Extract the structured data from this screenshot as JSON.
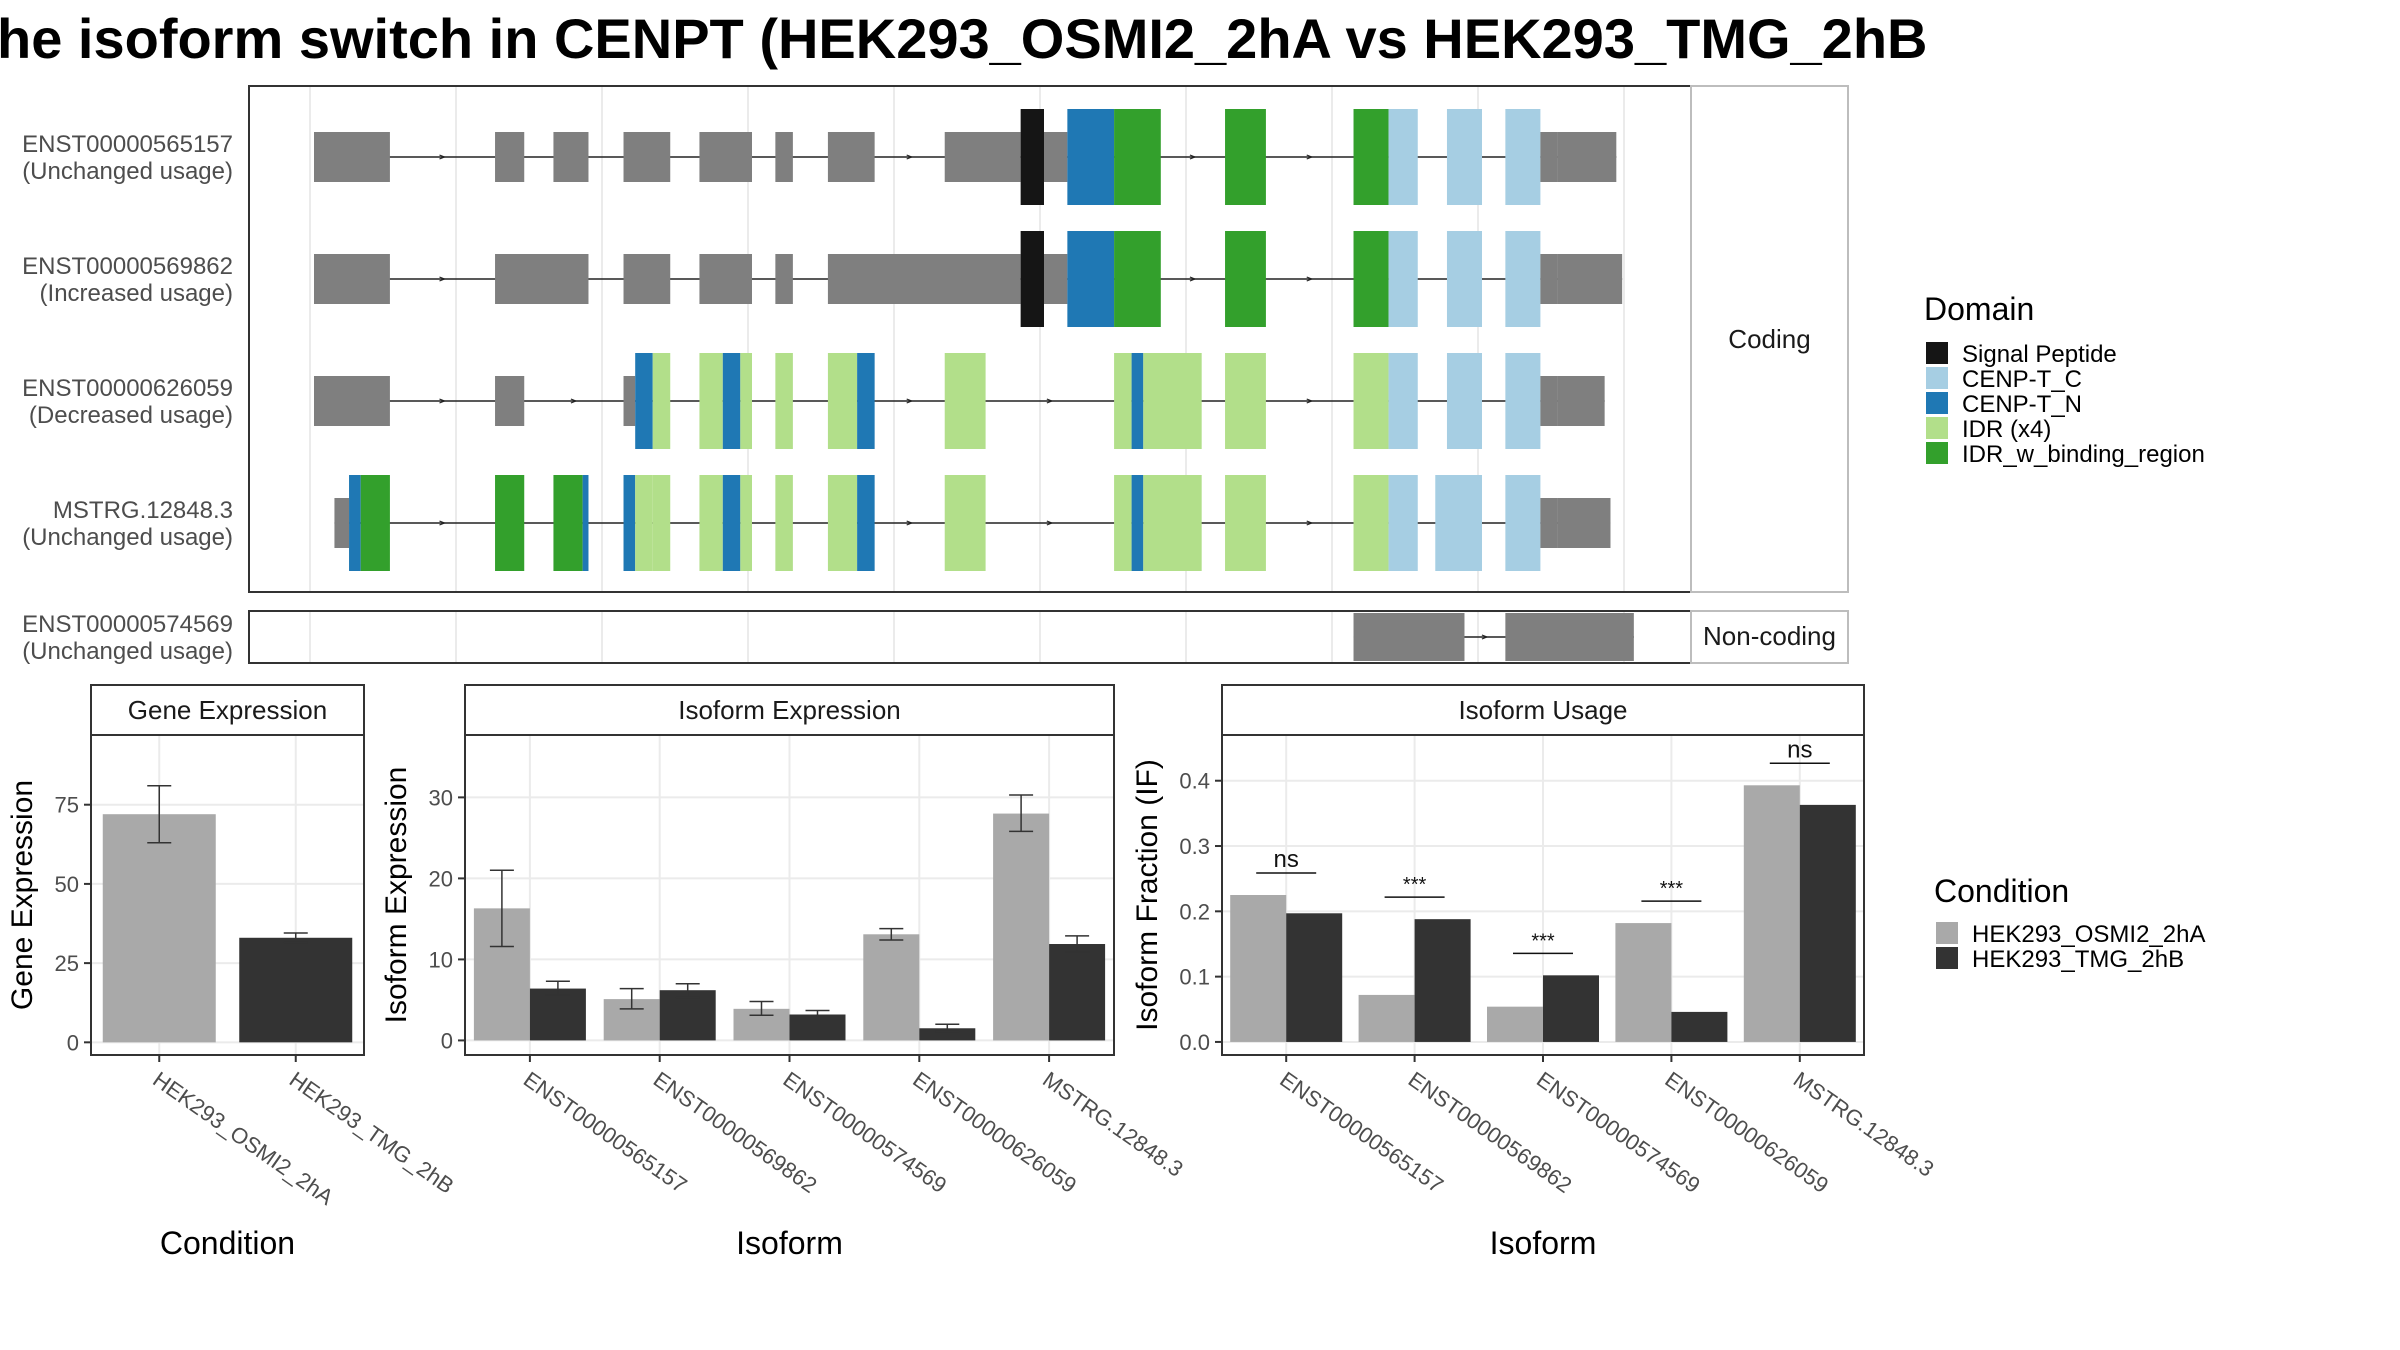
{
  "title": "he isoform switch in CENPT (HEK293_OSMI2_2hA vs HEK293_TMG_2hB",
  "colors": {
    "signal_peptide": "#151515",
    "cenp_t_c": "#a6cee3",
    "cenp_t_n": "#1f78b4",
    "idr": "#b2df8a",
    "idr_binding": "#33a02c",
    "no_domain": "#7f7f7f",
    "cond_a": "#a9a9a9",
    "cond_b": "#333333",
    "panel_border": "#333333",
    "strip_border": "#bdbdbd",
    "grid": "#ebebeb",
    "axis_text": "#4d4d4d"
  },
  "chart_data": [
    {
      "type": "table",
      "name": "isoform-structure",
      "facets": [
        "Coding",
        "Non-coding"
      ],
      "transcripts": [
        {
          "id": "ENST00000565157",
          "label": "(Unchanged usage)",
          "facet": "Coding",
          "exons": [
            [
              0,
              13
            ],
            [
              31,
              36
            ],
            [
              41,
              47
            ],
            [
              53,
              61
            ],
            [
              66,
              75
            ],
            [
              79,
              82
            ],
            [
              88,
              96
            ],
            [
              108,
              121
            ],
            [
              121,
              125
            ],
            [
              125,
              129
            ],
            [
              129,
              137
            ],
            [
              137,
              145
            ],
            [
              156,
              163
            ],
            [
              178,
              184
            ],
            [
              184,
              189
            ],
            [
              194,
              200
            ],
            [
              204,
              210
            ],
            [
              210,
              213
            ],
            [
              213,
              223
            ]
          ],
          "domains": [
            "none",
            "none",
            "none",
            "none",
            "none",
            "none",
            "none",
            "none",
            "Signal Peptide",
            "none",
            "CENP-T_N",
            "IDR_w_binding_region",
            "IDR_w_binding_region",
            "IDR_w_binding_region",
            "CENP-T_C",
            "CENP-T_C",
            "CENP-T_C",
            "none",
            "none"
          ]
        },
        {
          "id": "ENST00000569862",
          "label": "(Increased usage)",
          "facet": "Coding",
          "exons": [
            [
              0,
              13
            ],
            [
              31,
              47
            ],
            [
              53,
              61
            ],
            [
              66,
              75
            ],
            [
              79,
              82
            ],
            [
              88,
              121
            ],
            [
              121,
              125
            ],
            [
              125,
              129
            ],
            [
              129,
              137
            ],
            [
              137,
              145
            ],
            [
              156,
              163
            ],
            [
              178,
              184
            ],
            [
              184,
              189
            ],
            [
              194,
              200
            ],
            [
              204,
              210
            ],
            [
              210,
              213
            ],
            [
              213,
              224
            ]
          ],
          "domains": [
            "none",
            "none",
            "none",
            "none",
            "none",
            "none",
            "Signal Peptide",
            "none",
            "CENP-T_N",
            "IDR_w_binding_region",
            "IDR_w_binding_region",
            "IDR_w_binding_region",
            "CENP-T_C",
            "CENP-T_C",
            "CENP-T_C",
            "none",
            "none"
          ]
        },
        {
          "id": "ENST00000626059",
          "label": "(Decreased usage)",
          "facet": "Coding",
          "exons": [
            [
              0,
              13
            ],
            [
              31,
              36
            ],
            [
              53,
              55
            ],
            [
              55,
              58
            ],
            [
              58,
              61
            ],
            [
              66,
              70
            ],
            [
              70,
              73
            ],
            [
              73,
              75
            ],
            [
              79,
              82
            ],
            [
              88,
              93
            ],
            [
              93,
              96
            ],
            [
              108,
              115
            ],
            [
              137,
              140
            ],
            [
              140,
              142
            ],
            [
              142,
              152
            ],
            [
              156,
              163
            ],
            [
              178,
              184
            ],
            [
              184,
              189
            ],
            [
              194,
              200
            ],
            [
              204,
              210
            ],
            [
              210,
              213
            ],
            [
              213,
              221
            ]
          ],
          "domains": [
            "none",
            "none",
            "none",
            "CENP-T_N",
            "IDR",
            "IDR",
            "CENP-T_N",
            "IDR",
            "IDR",
            "IDR",
            "CENP-T_N",
            "IDR",
            "IDR",
            "CENP-T_N",
            "IDR",
            "IDR",
            "IDR",
            "CENP-T_C",
            "CENP-T_C",
            "CENP-T_C",
            "none",
            "none"
          ]
        },
        {
          "id": "MSTRG.12848.3",
          "label": "(Unchanged usage)",
          "facet": "Coding",
          "exons": [
            [
              3.5,
              6
            ],
            [
              6,
              8
            ],
            [
              8,
              13
            ],
            [
              31,
              36
            ],
            [
              41,
              46
            ],
            [
              46,
              47
            ],
            [
              53,
              55
            ],
            [
              55,
              58
            ],
            [
              58,
              61
            ],
            [
              66,
              70
            ],
            [
              70,
              73
            ],
            [
              73,
              75
            ],
            [
              79,
              82
            ],
            [
              88,
              93
            ],
            [
              93,
              96
            ],
            [
              108,
              115
            ],
            [
              137,
              140
            ],
            [
              140,
              142
            ],
            [
              142,
              152
            ],
            [
              156,
              163
            ],
            [
              178,
              184
            ],
            [
              184,
              189
            ],
            [
              192,
              200
            ],
            [
              204,
              210
            ],
            [
              210,
              213
            ],
            [
              213,
              222
            ]
          ],
          "domains": [
            "none",
            "CENP-T_N",
            "IDR_w_binding_region",
            "IDR_w_binding_region",
            "IDR_w_binding_region",
            "CENP-T_N",
            "CENP-T_N",
            "IDR",
            "IDR",
            "IDR",
            "CENP-T_N",
            "IDR",
            "IDR",
            "IDR",
            "CENP-T_N",
            "IDR",
            "IDR",
            "CENP-T_N",
            "IDR",
            "IDR",
            "IDR",
            "CENP-T_C",
            "CENP-T_C",
            "CENP-T_C",
            "none",
            "none"
          ]
        },
        {
          "id": "ENST00000574569",
          "label": "(Unchanged usage)",
          "facet": "Non-coding",
          "exons": [
            [
              178,
              197
            ],
            [
              204,
              226
            ]
          ],
          "domains": [
            "none",
            "none"
          ]
        }
      ],
      "legend": {
        "title": "Domain",
        "items": [
          "Signal Peptide",
          "CENP-T_C",
          "CENP-T_N",
          "IDR (x4)",
          "IDR_w_binding_region"
        ]
      }
    },
    {
      "type": "bar",
      "name": "gene-expression",
      "title": "Gene Expression",
      "xlabel": "Condition",
      "ylabel": "Gene Expression",
      "categories": [
        "HEK293_OSMI2_2hA",
        "HEK293_TMG_2hB"
      ],
      "values": [
        72,
        33
      ],
      "errors": [
        [
          63,
          81
        ],
        [
          31.5,
          34.5
        ]
      ],
      "ylim": [
        -4,
        97
      ],
      "yticks": [
        0,
        25,
        50,
        75
      ]
    },
    {
      "type": "bar",
      "name": "isoform-expression",
      "title": "Isoform Expression",
      "xlabel": "Isoform",
      "ylabel": "Isoform Expression",
      "categories": [
        "ENST00000565157",
        "ENST00000569862",
        "ENST00000574569",
        "ENST00000626059",
        "MSTRG.12848.3"
      ],
      "series": [
        {
          "name": "HEK293_OSMI2_2hA",
          "values": [
            16.3,
            5.1,
            3.9,
            13.1,
            28.0
          ],
          "errors": [
            [
              11.6,
              21.0
            ],
            [
              3.9,
              6.4
            ],
            [
              3.1,
              4.8
            ],
            [
              12.4,
              13.8
            ],
            [
              25.8,
              30.3
            ]
          ]
        },
        {
          "name": "HEK293_TMG_2hB",
          "values": [
            6.4,
            6.2,
            3.2,
            1.5,
            11.9
          ],
          "errors": [
            [
              5.6,
              7.3
            ],
            [
              5.3,
              7.0
            ],
            [
              2.8,
              3.7
            ],
            [
              1.1,
              2.0
            ],
            [
              10.9,
              12.9
            ]
          ]
        }
      ],
      "ylim": [
        -1.8,
        37.7
      ],
      "yticks": [
        0,
        10,
        20,
        30
      ]
    },
    {
      "type": "bar",
      "name": "isoform-usage",
      "title": "Isoform Usage",
      "xlabel": "Isoform",
      "ylabel": "Isoform Fraction (IF)",
      "categories": [
        "ENST00000565157",
        "ENST00000569862",
        "ENST00000574569",
        "ENST00000626059",
        "MSTRG.12848.3"
      ],
      "series": [
        {
          "name": "HEK293_OSMI2_2hA",
          "values": [
            0.225,
            0.072,
            0.054,
            0.182,
            0.393
          ]
        },
        {
          "name": "HEK293_TMG_2hB",
          "values": [
            0.197,
            0.188,
            0.102,
            0.046,
            0.363
          ]
        }
      ],
      "significance": [
        "ns",
        "***",
        "***",
        "***",
        "ns"
      ],
      "ylim": [
        -0.02,
        0.47
      ],
      "yticks": [
        "0.0",
        "0.1",
        "0.2",
        "0.3",
        "0.4"
      ]
    }
  ],
  "condition_legend": {
    "title": "Condition",
    "items": [
      "HEK293_OSMI2_2hA",
      "HEK293_TMG_2hB"
    ]
  }
}
